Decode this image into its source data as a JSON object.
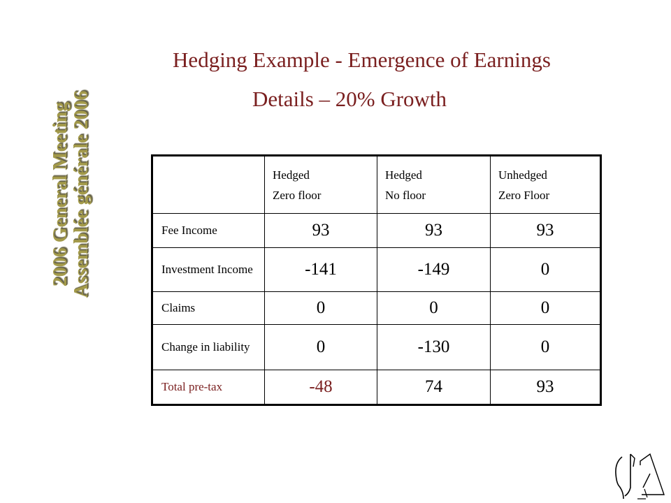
{
  "slide": {
    "title": "Hedging Example - Emergence of Earnings",
    "subtitle": "Details – 20% Growth",
    "side_text_line1": "2006 General Meeting",
    "side_text_line2": "Assemblée  générale 2006",
    "colors": {
      "title": "#7a1f1f",
      "side_text": "#a39a4a"
    }
  },
  "table": {
    "headers": [
      {
        "line1": "Hedged",
        "line2": "Zero floor"
      },
      {
        "line1": "Hedged",
        "line2": "No floor"
      },
      {
        "line1": "Unhedged",
        "line2": "Zero Floor"
      }
    ],
    "rows": [
      {
        "label": "Fee Income",
        "values": [
          "93",
          "93",
          "93"
        ]
      },
      {
        "label": "Investment Income",
        "values": [
          "-141",
          "-149",
          "0"
        ]
      },
      {
        "label": "Claims",
        "values": [
          "0",
          "0",
          "0"
        ]
      },
      {
        "label": "Change in liability",
        "values": [
          "0",
          "-130",
          "0"
        ]
      },
      {
        "label": "Total pre-tax",
        "values": [
          "-48",
          "74",
          "93"
        ]
      }
    ]
  },
  "logo": {
    "icon": "society-logo-icon"
  }
}
